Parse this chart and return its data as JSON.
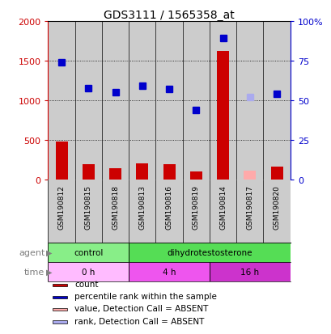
{
  "title": "GDS3111 / 1565358_at",
  "samples": [
    "GSM190812",
    "GSM190815",
    "GSM190818",
    "GSM190813",
    "GSM190816",
    "GSM190819",
    "GSM190814",
    "GSM190817",
    "GSM190820"
  ],
  "count_values": [
    480,
    190,
    145,
    205,
    190,
    95,
    1625,
    110,
    160
  ],
  "rank_values": [
    1480,
    1150,
    1100,
    1185,
    1140,
    880,
    1780,
    1035,
    1085
  ],
  "absent_mask": [
    false,
    false,
    false,
    false,
    false,
    false,
    false,
    true,
    false
  ],
  "bar_color_normal": "#cc0000",
  "bar_color_absent": "#ffaaaa",
  "dot_color_normal": "#0000cc",
  "dot_color_absent": "#aaaaee",
  "ylim_left": [
    0,
    2000
  ],
  "ylim_right": [
    0,
    100
  ],
  "yticks_left": [
    0,
    500,
    1000,
    1500,
    2000
  ],
  "ytick_labels_left": [
    "0",
    "500",
    "1000",
    "1500",
    "2000"
  ],
  "ytick_labels_right": [
    "0",
    "25",
    "50",
    "75",
    "100%"
  ],
  "agent_groups": [
    {
      "label": "control",
      "start": 0,
      "end": 3,
      "color": "#88ee88"
    },
    {
      "label": "dihydrotestosterone",
      "start": 3,
      "end": 9,
      "color": "#55dd55"
    }
  ],
  "time_groups": [
    {
      "label": "0 h",
      "start": 0,
      "end": 3,
      "color": "#ffbbff"
    },
    {
      "label": "4 h",
      "start": 3,
      "end": 6,
      "color": "#ee55ee"
    },
    {
      "label": "16 h",
      "start": 6,
      "end": 9,
      "color": "#cc33cc"
    }
  ],
  "legend_items": [
    {
      "color": "#cc0000",
      "label": "count"
    },
    {
      "color": "#0000cc",
      "label": "percentile rank within the sample"
    },
    {
      "color": "#ffaaaa",
      "label": "value, Detection Call = ABSENT"
    },
    {
      "color": "#aaaaee",
      "label": "rank, Detection Call = ABSENT"
    }
  ],
  "bg_color": "#cccccc",
  "plot_bg_color": "#ffffff"
}
